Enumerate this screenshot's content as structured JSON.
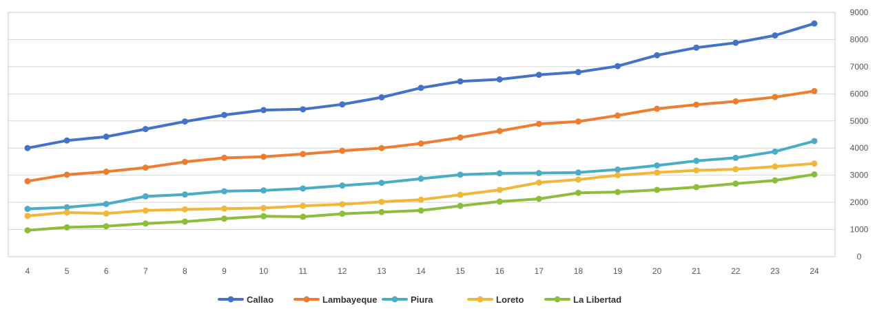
{
  "chart_data": {
    "type": "line",
    "x": [
      4,
      5,
      6,
      7,
      8,
      9,
      10,
      11,
      12,
      13,
      14,
      15,
      16,
      17,
      18,
      19,
      20,
      21,
      22,
      23,
      24
    ],
    "x_tick_labels": [
      "4",
      "5",
      "6",
      "7",
      "8",
      "9",
      "10",
      "11",
      "12",
      "13",
      "14",
      "15",
      "16",
      "17",
      "18",
      "19",
      "20",
      "21",
      "22",
      "23",
      "24"
    ],
    "y_tick_labels": [
      "0",
      "1000",
      "2000",
      "3000",
      "4000",
      "5000",
      "6000",
      "7000",
      "8000",
      "9000"
    ],
    "y_ticks": [
      0,
      1000,
      2000,
      3000,
      4000,
      5000,
      6000,
      7000,
      8000,
      9000
    ],
    "ylim": [
      0,
      9000
    ],
    "y_axis_side": "right",
    "grid": true,
    "legend_position": "bottom-center",
    "series": [
      {
        "name": "Callao",
        "color": "#4472c4",
        "values": [
          4000,
          4280,
          4420,
          4700,
          4980,
          5220,
          5400,
          5430,
          5610,
          5870,
          6220,
          6460,
          6530,
          6700,
          6800,
          7020,
          7420,
          7700,
          7880,
          8150,
          8590
        ]
      },
      {
        "name": "Lambayeque",
        "color": "#ed7d31",
        "values": [
          2780,
          3020,
          3130,
          3280,
          3490,
          3640,
          3680,
          3780,
          3900,
          4000,
          4170,
          4390,
          4630,
          4890,
          4980,
          5200,
          5450,
          5600,
          5720,
          5880,
          6100
        ]
      },
      {
        "name": "Piura",
        "color": "#4bacc6",
        "values": [
          1760,
          1820,
          1940,
          2220,
          2290,
          2410,
          2440,
          2510,
          2620,
          2720,
          2870,
          3020,
          3070,
          3080,
          3100,
          3210,
          3360,
          3530,
          3640,
          3870,
          4260
        ]
      },
      {
        "name": "Loreto",
        "color": "#f0b73a",
        "values": [
          1500,
          1630,
          1590,
          1700,
          1740,
          1770,
          1790,
          1870,
          1930,
          2020,
          2100,
          2280,
          2460,
          2730,
          2840,
          3000,
          3100,
          3180,
          3220,
          3320,
          3430
        ]
      },
      {
        "name": "La Libertad",
        "color": "#8cbd3c",
        "values": [
          970,
          1080,
          1120,
          1220,
          1290,
          1400,
          1490,
          1470,
          1580,
          1640,
          1700,
          1870,
          2030,
          2130,
          2350,
          2380,
          2460,
          2560,
          2690,
          2810,
          3030
        ]
      }
    ]
  }
}
